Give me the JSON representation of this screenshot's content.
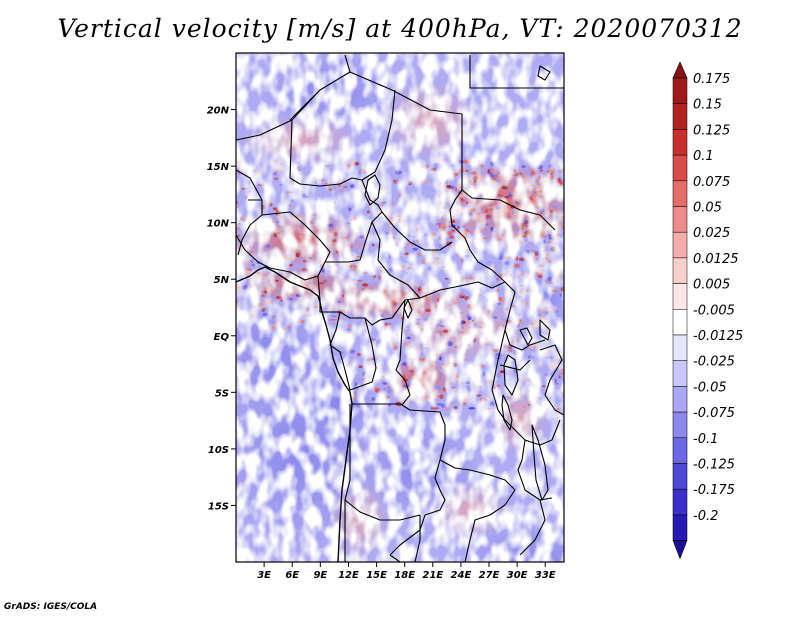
{
  "title": "Vertical velocity [m/s] at 400hPa, VT: 2020070312",
  "footer": "GrADS: IGES/COLA",
  "map": {
    "lon_range": [
      0,
      35
    ],
    "lat_range": [
      -20,
      25
    ],
    "lon_ticks": [
      {
        "value": 3,
        "label": "3E"
      },
      {
        "value": 6,
        "label": "6E"
      },
      {
        "value": 9,
        "label": "9E"
      },
      {
        "value": 12,
        "label": "12E"
      },
      {
        "value": 15,
        "label": "15E"
      },
      {
        "value": 18,
        "label": "18E"
      },
      {
        "value": 21,
        "label": "21E"
      },
      {
        "value": 24,
        "label": "24E"
      },
      {
        "value": 27,
        "label": "27E"
      },
      {
        "value": 30,
        "label": "30E"
      },
      {
        "value": 33,
        "label": "33E"
      }
    ],
    "lat_ticks": [
      {
        "value": 20,
        "label": "20N"
      },
      {
        "value": 15,
        "label": "15N"
      },
      {
        "value": 10,
        "label": "10N"
      },
      {
        "value": 5,
        "label": "5N"
      },
      {
        "value": 0,
        "label": "EQ"
      },
      {
        "value": -5,
        "label": "5S"
      },
      {
        "value": -10,
        "label": "10S"
      },
      {
        "value": -15,
        "label": "15S"
      }
    ]
  },
  "colorbar": {
    "levels": [
      {
        "label": "0.175",
        "color": "#9e1a1a"
      },
      {
        "label": "0.15",
        "color": "#b32222"
      },
      {
        "label": "0.125",
        "color": "#c8302f"
      },
      {
        "label": "0.1",
        "color": "#d94c4a"
      },
      {
        "label": "0.075",
        "color": "#e36d69"
      },
      {
        "label": "0.05",
        "color": "#ec8c88"
      },
      {
        "label": "0.025",
        "color": "#f4aeaa"
      },
      {
        "label": "0.0125",
        "color": "#f9cfcc"
      },
      {
        "label": "0.005",
        "color": "#fde8e6"
      },
      {
        "label": "-0.005",
        "color": "#ffffff"
      },
      {
        "label": "-0.0125",
        "color": "#e6e6fc"
      },
      {
        "label": "-0.025",
        "color": "#c9c8f8"
      },
      {
        "label": "-0.05",
        "color": "#aaa8f3"
      },
      {
        "label": "-0.075",
        "color": "#8c88ee"
      },
      {
        "label": "-0.1",
        "color": "#6d68e6"
      },
      {
        "label": "-0.125",
        "color": "#5048d9"
      },
      {
        "label": "-0.175",
        "color": "#3a2fc9"
      },
      {
        "label": "-0.2",
        "color": "#261ab0"
      }
    ],
    "top_triangle_color": "#8a1414",
    "bottom_triangle_color": "#1c0f9e"
  }
}
